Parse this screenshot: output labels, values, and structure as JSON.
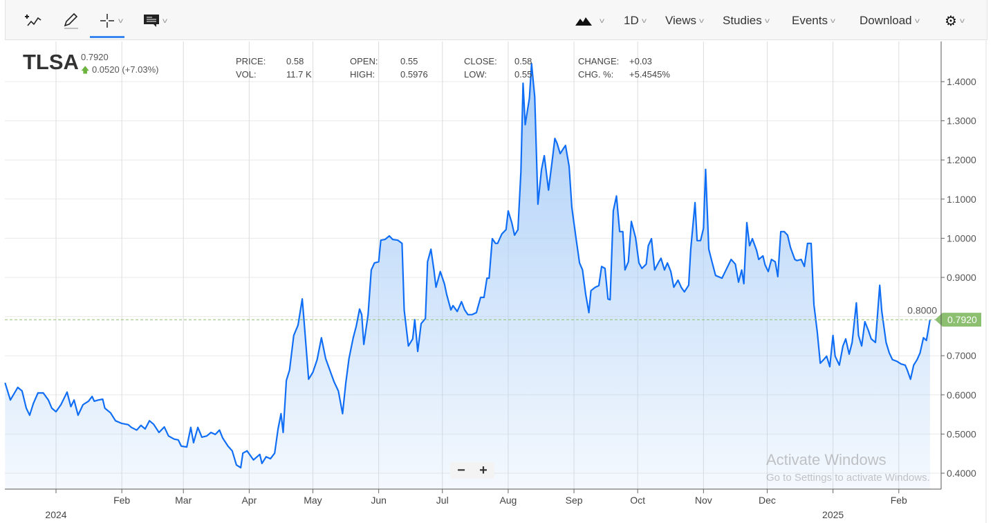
{
  "toolbar": {
    "left_tools": [
      "add-study-icon",
      "pencil-icon",
      "crosshair-icon",
      "comment-icon"
    ],
    "chart_type_icon": "mountain-icon",
    "interval": "1D",
    "views": "Views",
    "studies": "Studies",
    "events": "Events",
    "download": "Download",
    "settings_icon": "gear-icon"
  },
  "header": {
    "symbol": "TLSA",
    "last": "0.7920",
    "change": "0.0520 (+7.03%)",
    "quote": {
      "price_label": "PRICE:",
      "price": "0.58",
      "vol_label": "VOL:",
      "vol": "11.7 K",
      "open_label": "OPEN:",
      "open": "0.55",
      "high_label": "HIGH:",
      "high": "0.5976",
      "close_label": "CLOSE:",
      "close": "0.58",
      "low_label": "LOW:",
      "low": "0.55",
      "change_label": "CHANGE:",
      "change": "+0.03",
      "chgpct_label": "CHG. %:",
      "chgpct": "+5.4545%"
    }
  },
  "zoom": {
    "minus": "−",
    "plus": "+"
  },
  "watermark": {
    "line1": "Activate Windows",
    "line2": "Go to Settings to activate Windows."
  },
  "colors": {
    "line": "#0f6ef5",
    "fill": "#a9cdf7",
    "last_label": "#8cc070",
    "grid": "#e9e9e9"
  },
  "chart_data": {
    "type": "area",
    "x_unit": "days since 2024-01-01",
    "ylim": [
      0.37,
      1.48
    ],
    "xlim": [
      -24,
      416
    ],
    "yticks": [
      "0.4000",
      "0.5000",
      "0.6000",
      "0.7000",
      "0.8000",
      "0.9000",
      "1.0000",
      "1.1000",
      "1.2000",
      "1.3000",
      "1.4000"
    ],
    "ytick_values": [
      0.4,
      0.5,
      0.6,
      0.7,
      0.8,
      0.9,
      1.0,
      1.1,
      1.2,
      1.3,
      1.4
    ],
    "month_ticks": [
      {
        "label": "",
        "day": 0
      },
      {
        "label": "Feb",
        "day": 31
      },
      {
        "label": "Mar",
        "day": 60
      },
      {
        "label": "Apr",
        "day": 91
      },
      {
        "label": "May",
        "day": 121
      },
      {
        "label": "Jun",
        "day": 152
      },
      {
        "label": "Jul",
        "day": 182
      },
      {
        "label": "Aug",
        "day": 213
      },
      {
        "label": "Sep",
        "day": 244
      },
      {
        "label": "Oct",
        "day": 274
      },
      {
        "label": "Nov",
        "day": 305
      },
      {
        "label": "Dec",
        "day": 335
      },
      {
        "label": "",
        "day": 366
      },
      {
        "label": "Feb",
        "day": 397
      }
    ],
    "year_labels": [
      {
        "label": "2024",
        "day": 0
      },
      {
        "label": "2025",
        "day": 366
      }
    ],
    "last_value": 0.792,
    "last_label": "0.7920",
    "points": [
      [
        -24,
        0.631
      ],
      [
        -21.5,
        0.587
      ],
      [
        -18,
        0.619
      ],
      [
        -16,
        0.61
      ],
      [
        -14,
        0.566
      ],
      [
        -12.4,
        0.548
      ],
      [
        -10.7,
        0.578
      ],
      [
        -8.5,
        0.605
      ],
      [
        -6,
        0.605
      ],
      [
        -3.6,
        0.587
      ],
      [
        -2,
        0.566
      ],
      [
        0,
        0.557
      ],
      [
        2.3,
        0.575
      ],
      [
        5.2,
        0.607
      ],
      [
        7,
        0.57
      ],
      [
        8.5,
        0.587
      ],
      [
        10.4,
        0.548
      ],
      [
        12.7,
        0.575
      ],
      [
        15.3,
        0.584
      ],
      [
        17,
        0.596
      ],
      [
        18,
        0.584
      ],
      [
        20,
        0.587
      ],
      [
        22,
        0.589
      ],
      [
        23,
        0.566
      ],
      [
        25.7,
        0.554
      ],
      [
        28,
        0.534
      ],
      [
        31,
        0.527
      ],
      [
        34,
        0.524
      ],
      [
        35.5,
        0.517
      ],
      [
        38,
        0.51
      ],
      [
        40,
        0.522
      ],
      [
        42,
        0.513
      ],
      [
        44,
        0.534
      ],
      [
        46,
        0.525
      ],
      [
        48.5,
        0.504
      ],
      [
        51,
        0.518
      ],
      [
        53,
        0.495
      ],
      [
        55.7,
        0.487
      ],
      [
        57.6,
        0.485
      ],
      [
        59,
        0.469
      ],
      [
        61.6,
        0.467
      ],
      [
        63.5,
        0.517
      ],
      [
        64.8,
        0.478
      ],
      [
        66.8,
        0.517
      ],
      [
        68.7,
        0.492
      ],
      [
        71,
        0.495
      ],
      [
        73,
        0.504
      ],
      [
        75,
        0.499
      ],
      [
        77,
        0.51
      ],
      [
        78.5,
        0.49
      ],
      [
        81,
        0.469
      ],
      [
        83,
        0.457
      ],
      [
        85,
        0.421
      ],
      [
        87,
        0.414
      ],
      [
        88,
        0.451
      ],
      [
        90,
        0.457
      ],
      [
        93,
        0.434
      ],
      [
        96,
        0.448
      ],
      [
        97,
        0.425
      ],
      [
        99,
        0.442
      ],
      [
        101,
        0.437
      ],
      [
        103,
        0.451
      ],
      [
        104.6,
        0.513
      ],
      [
        106,
        0.552
      ],
      [
        107,
        0.504
      ],
      [
        108.5,
        0.637
      ],
      [
        110,
        0.663
      ],
      [
        112,
        0.752
      ],
      [
        114,
        0.778
      ],
      [
        116,
        0.845
      ],
      [
        117,
        0.778
      ],
      [
        119,
        0.64
      ],
      [
        121,
        0.658
      ],
      [
        123,
        0.69
      ],
      [
        125,
        0.746
      ],
      [
        127,
        0.693
      ],
      [
        129,
        0.663
      ],
      [
        131,
        0.633
      ],
      [
        133,
        0.61
      ],
      [
        135,
        0.552
      ],
      [
        136.5,
        0.631
      ],
      [
        138,
        0.693
      ],
      [
        140,
        0.746
      ],
      [
        141.4,
        0.775
      ],
      [
        143,
        0.819
      ],
      [
        144,
        0.805
      ],
      [
        145,
        0.729
      ],
      [
        147,
        0.805
      ],
      [
        148.5,
        0.919
      ],
      [
        150,
        0.937
      ],
      [
        152,
        0.94
      ],
      [
        153,
        0.995
      ],
      [
        155,
        0.997
      ],
      [
        157,
        1.006
      ],
      [
        158.6,
        0.997
      ],
      [
        161,
        0.995
      ],
      [
        163,
        0.987
      ],
      [
        164,
        0.817
      ],
      [
        166,
        0.725
      ],
      [
        168,
        0.743
      ],
      [
        169,
        0.792
      ],
      [
        170.4,
        0.711
      ],
      [
        172,
        0.782
      ],
      [
        174,
        0.795
      ],
      [
        175,
        0.94
      ],
      [
        176.6,
        0.972
      ],
      [
        178,
        0.919
      ],
      [
        179,
        0.875
      ],
      [
        181,
        0.915
      ],
      [
        183,
        0.883
      ],
      [
        184,
        0.857
      ],
      [
        186,
        0.817
      ],
      [
        187,
        0.828
      ],
      [
        189,
        0.813
      ],
      [
        191,
        0.838
      ],
      [
        192.5,
        0.817
      ],
      [
        194,
        0.805
      ],
      [
        196,
        0.805
      ],
      [
        198,
        0.81
      ],
      [
        200,
        0.849
      ],
      [
        201.6,
        0.849
      ],
      [
        203,
        0.898
      ],
      [
        204,
        0.898
      ],
      [
        205.5,
        0.999
      ],
      [
        207,
        0.987
      ],
      [
        208,
        0.987
      ],
      [
        210,
        1.011
      ],
      [
        212,
        1.022
      ],
      [
        213,
        1.07
      ],
      [
        214.7,
        1.04
      ],
      [
        216,
        1.008
      ],
      [
        217.6,
        1.022
      ],
      [
        219,
        1.17
      ],
      [
        220,
        1.396
      ],
      [
        221,
        1.29
      ],
      [
        223,
        1.358
      ],
      [
        224,
        1.446
      ],
      [
        225.5,
        1.361
      ],
      [
        227,
        1.087
      ],
      [
        228.7,
        1.176
      ],
      [
        230,
        1.211
      ],
      [
        232,
        1.123
      ],
      [
        233.6,
        1.193
      ],
      [
        235,
        1.255
      ],
      [
        236,
        1.243
      ],
      [
        237.5,
        1.216
      ],
      [
        239,
        1.229
      ],
      [
        240,
        1.237
      ],
      [
        241.7,
        1.184
      ],
      [
        243,
        1.078
      ],
      [
        245,
        0.999
      ],
      [
        246.6,
        0.937
      ],
      [
        248,
        0.919
      ],
      [
        249.5,
        0.857
      ],
      [
        251,
        0.81
      ],
      [
        252,
        0.866
      ],
      [
        254,
        0.875
      ],
      [
        255.7,
        0.879
      ],
      [
        257,
        0.928
      ],
      [
        258.6,
        0.923
      ],
      [
        260,
        0.845
      ],
      [
        261,
        0.843
      ],
      [
        262.5,
        1.07
      ],
      [
        264,
        1.108
      ],
      [
        265.5,
        1.017
      ],
      [
        267,
        1.017
      ],
      [
        268,
        0.919
      ],
      [
        269.6,
        0.94
      ],
      [
        271,
        1.043
      ],
      [
        273,
        1.002
      ],
      [
        274.6,
        0.937
      ],
      [
        276,
        0.923
      ],
      [
        278,
        0.934
      ],
      [
        279,
        0.981
      ],
      [
        280.5,
        0.999
      ],
      [
        282,
        0.919
      ],
      [
        284,
        0.94
      ],
      [
        285,
        0.949
      ],
      [
        286.6,
        0.919
      ],
      [
        288,
        0.937
      ],
      [
        289.6,
        0.915
      ],
      [
        291,
        0.875
      ],
      [
        293,
        0.893
      ],
      [
        294.5,
        0.875
      ],
      [
        296,
        0.863
      ],
      [
        298,
        0.88
      ],
      [
        299,
        0.972
      ],
      [
        301,
        1.091
      ],
      [
        302,
        0.994
      ],
      [
        303.6,
        0.994
      ],
      [
        305,
        1.025
      ],
      [
        306,
        1.176
      ],
      [
        307.5,
        0.972
      ],
      [
        309,
        0.94
      ],
      [
        310.7,
        0.905
      ],
      [
        313.7,
        0.898
      ],
      [
        315.6,
        0.919
      ],
      [
        318,
        0.946
      ],
      [
        320,
        0.934
      ],
      [
        321.5,
        0.888
      ],
      [
        323,
        0.919
      ],
      [
        324,
        0.884
      ],
      [
        325.4,
        1.04
      ],
      [
        326.7,
        0.981
      ],
      [
        328,
        0.999
      ],
      [
        330,
        0.969
      ],
      [
        331,
        0.946
      ],
      [
        333,
        0.955
      ],
      [
        334,
        0.932
      ],
      [
        335.5,
        0.915
      ],
      [
        337,
        0.946
      ],
      [
        338.8,
        0.94
      ],
      [
        340,
        0.902
      ],
      [
        341.4,
        1.017
      ],
      [
        343,
        1.017
      ],
      [
        344.6,
        1.008
      ],
      [
        346,
        0.976
      ],
      [
        348,
        0.946
      ],
      [
        349,
        0.943
      ],
      [
        351,
        0.946
      ],
      [
        352.5,
        0.928
      ],
      [
        354,
        0.987
      ],
      [
        355.7,
        0.987
      ],
      [
        357,
        0.831
      ],
      [
        358.6,
        0.76
      ],
      [
        360,
        0.681
      ],
      [
        361.6,
        0.69
      ],
      [
        363,
        0.699
      ],
      [
        364.5,
        0.672
      ],
      [
        366,
        0.752
      ],
      [
        367,
        0.699
      ],
      [
        369,
        0.676
      ],
      [
        370.7,
        0.725
      ],
      [
        372,
        0.743
      ],
      [
        373.6,
        0.704
      ],
      [
        375,
        0.734
      ],
      [
        377,
        0.835
      ],
      [
        378,
        0.752
      ],
      [
        379.5,
        0.725
      ],
      [
        381,
        0.787
      ],
      [
        382.7,
        0.764
      ],
      [
        384,
        0.743
      ],
      [
        386,
        0.734
      ],
      [
        388,
        0.88
      ],
      [
        389,
        0.813
      ],
      [
        391,
        0.734
      ],
      [
        392.5,
        0.707
      ],
      [
        394,
        0.69
      ],
      [
        396,
        0.686
      ],
      [
        398,
        0.679
      ],
      [
        400,
        0.676
      ],
      [
        401,
        0.663
      ],
      [
        402.5,
        0.64
      ],
      [
        404,
        0.676
      ],
      [
        405.6,
        0.69
      ],
      [
        407,
        0.707
      ],
      [
        408.6,
        0.746
      ],
      [
        410,
        0.739
      ],
      [
        411.7,
        0.792
      ]
    ]
  }
}
